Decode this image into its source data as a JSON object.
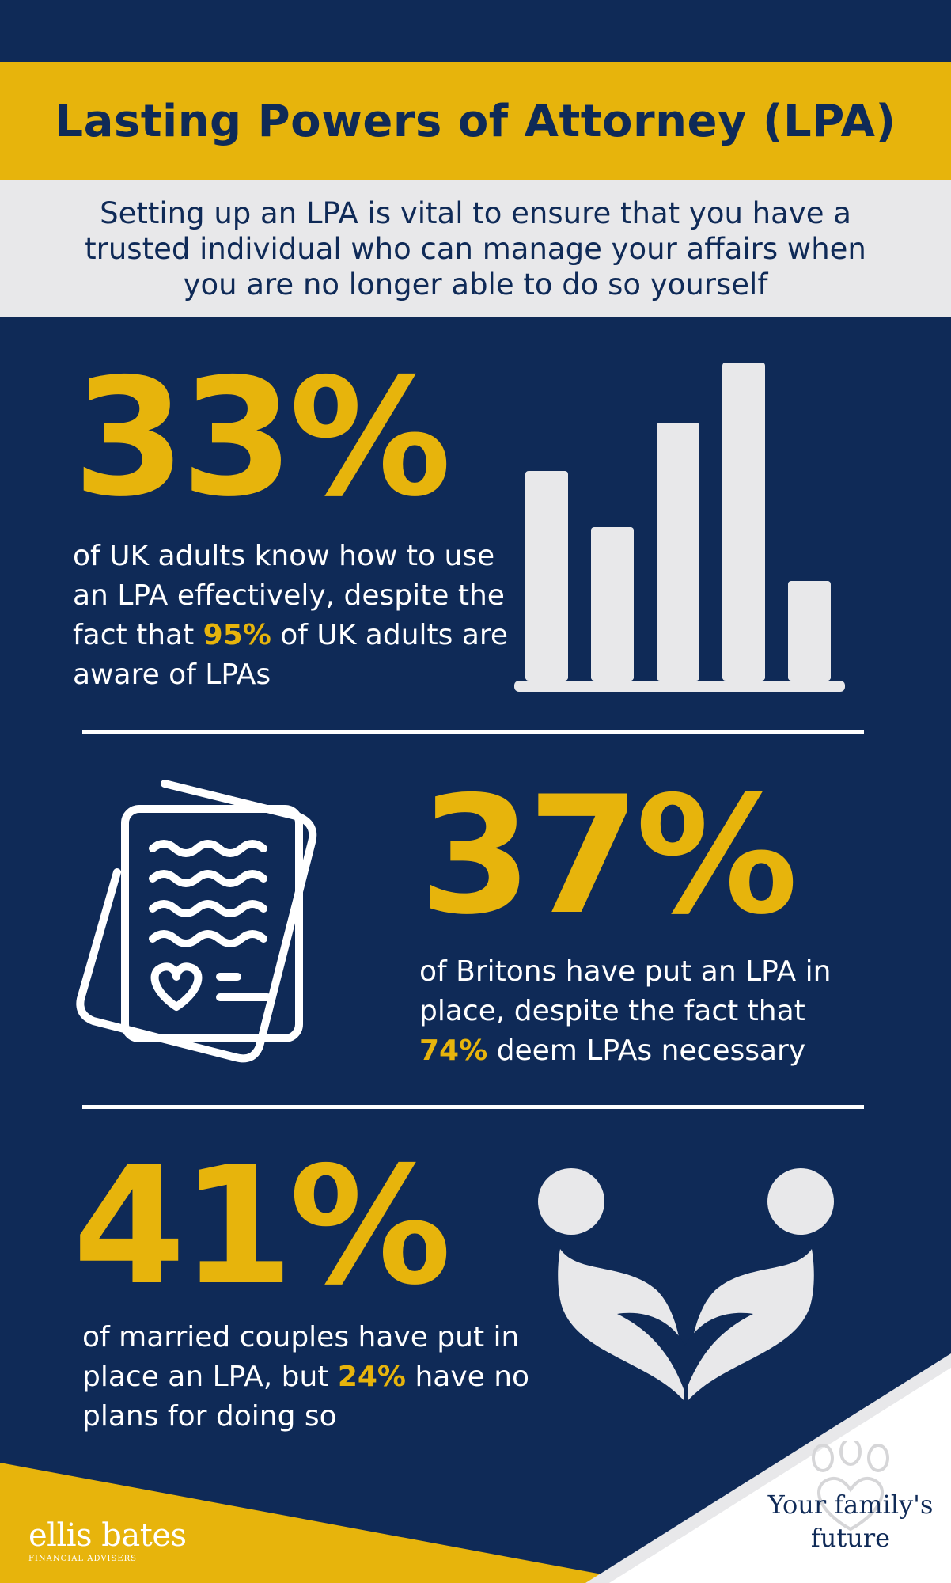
{
  "header": {
    "title": "Lasting Powers of Attorney (LPA)",
    "subtitle": "Setting up an LPA is vital to ensure that you have a trusted individual who can manage your affairs when you are no longer able to do so yourself"
  },
  "stats": [
    {
      "value": "33%",
      "desc_before": "of UK adults know how to use an LPA effectively, despite the fact that ",
      "highlight": "95%",
      "desc_after": " of UK adults are aware of LPAs",
      "icon": "bar-chart-icon"
    },
    {
      "value": "37%",
      "desc_before": "of Britons have put an LPA in place, despite the fact that ",
      "highlight": "74%",
      "desc_after": " deem LPAs necessary",
      "icon": "document-heart-icon"
    },
    {
      "value": "41%",
      "desc_before": "of married couples have put in place an LPA, but ",
      "highlight": "24%",
      "desc_after": " have no plans for doing so",
      "icon": "couple-heart-icon"
    }
  ],
  "footer": {
    "brand_name": "ellis bates",
    "brand_sub": "FINANCIAL ADVISERS",
    "tagline": "Your family's future"
  },
  "colors": {
    "navy": "#0f2a57",
    "gold": "#e7b40c",
    "light_grey": "#e8e8ea",
    "white": "#ffffff"
  }
}
